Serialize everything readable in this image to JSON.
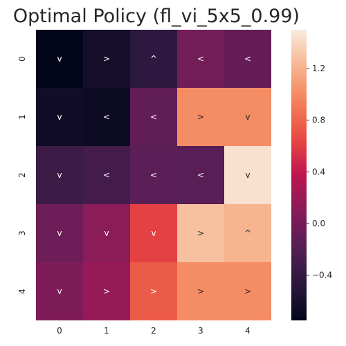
{
  "chart_data": {
    "type": "heatmap",
    "title": "Optimal Policy (fl_vi_5x5_0.99)",
    "xlabel": "",
    "ylabel": "",
    "x_tick_labels": [
      "0",
      "1",
      "2",
      "3",
      "4"
    ],
    "y_tick_labels": [
      "0",
      "1",
      "2",
      "3",
      "4"
    ],
    "values": [
      [
        -0.75,
        -0.62,
        -0.45,
        -0.02,
        -0.1
      ],
      [
        -0.65,
        -0.68,
        -0.12,
        1.0,
        1.0
      ],
      [
        -0.35,
        -0.3,
        -0.15,
        -0.17,
        1.45
      ],
      [
        -0.05,
        0.12,
        0.62,
        1.28,
        1.22
      ],
      [
        0.05,
        0.18,
        0.75,
        1.0,
        1.0
      ]
    ],
    "annotations": [
      [
        "v",
        ">",
        "^",
        "<",
        "<"
      ],
      [
        "v",
        "<",
        "<",
        ">",
        "v"
      ],
      [
        "v",
        "<",
        "<",
        "<",
        "v"
      ],
      [
        "v",
        "v",
        "v",
        ">",
        "^"
      ],
      [
        "v",
        ">",
        ">",
        ">",
        ">"
      ]
    ],
    "colorbar": {
      "range": [
        -0.75,
        1.5
      ],
      "tick_values": [
        -0.4,
        0.0,
        0.4,
        0.8,
        1.2
      ],
      "tick_labels": [
        "−0.4",
        "0.0",
        "0.4",
        "0.8",
        "1.2"
      ]
    },
    "colormap": "rocket",
    "grid": false
  }
}
